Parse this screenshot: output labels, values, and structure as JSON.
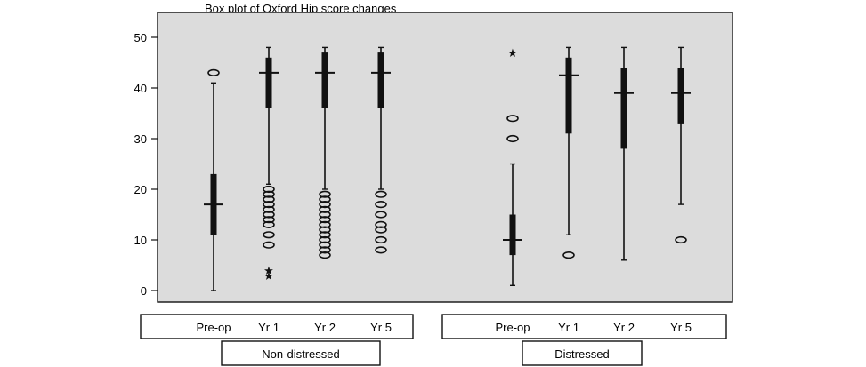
{
  "chart_data": {
    "type": "boxplot",
    "title": "Box plot of Oxford Hip score changes",
    "xlabel": "",
    "ylabel": "",
    "ylim": [
      0,
      50
    ],
    "yticks": [
      0,
      10,
      20,
      30,
      40,
      50
    ],
    "grid": false,
    "legend": "none",
    "colors": {
      "plot_background": "#dcdcdc",
      "ink": "#111111"
    },
    "groups": [
      {
        "name": "Non-distressed",
        "categories": [
          "Pre-op",
          "Yr 1",
          "Yr 2",
          "Yr 5"
        ],
        "boxes": [
          {
            "min": 0,
            "q1": 11,
            "median": 17,
            "q3": 23,
            "max": 41,
            "outliers": [
              43
            ],
            "extremes": []
          },
          {
            "min": 21,
            "q1": 36,
            "median": 43,
            "q3": 46,
            "max": 48,
            "outliers": [
              9,
              11,
              13,
              14,
              15,
              16,
              17,
              18,
              19,
              20
            ],
            "extremes": [
              3,
              4
            ]
          },
          {
            "min": 20,
            "q1": 36,
            "median": 43,
            "q3": 47,
            "max": 48,
            "outliers": [
              7,
              8,
              9,
              10,
              11,
              12,
              13,
              14,
              15,
              16,
              17,
              18,
              19
            ],
            "extremes": []
          },
          {
            "min": 20,
            "q1": 36,
            "median": 43,
            "q3": 47,
            "max": 48,
            "outliers": [
              8,
              10,
              12,
              13,
              15,
              17,
              19
            ],
            "extremes": []
          }
        ]
      },
      {
        "name": "Distressed",
        "categories": [
          "Pre-op",
          "Yr 1",
          "Yr 2",
          "Yr 5"
        ],
        "boxes": [
          {
            "min": 1,
            "q1": 7,
            "median": 10,
            "q3": 15,
            "max": 25,
            "outliers": [
              30,
              34
            ],
            "extremes": [
              47
            ]
          },
          {
            "min": 11,
            "q1": 31,
            "median": 42.5,
            "q3": 46,
            "max": 48,
            "outliers": [
              7
            ],
            "extremes": []
          },
          {
            "min": 6,
            "q1": 28,
            "median": 39,
            "q3": 44,
            "max": 48,
            "outliers": [],
            "extremes": []
          },
          {
            "min": 17,
            "q1": 33,
            "median": 39,
            "q3": 44,
            "max": 48,
            "outliers": [
              10
            ],
            "extremes": []
          }
        ]
      }
    ]
  }
}
